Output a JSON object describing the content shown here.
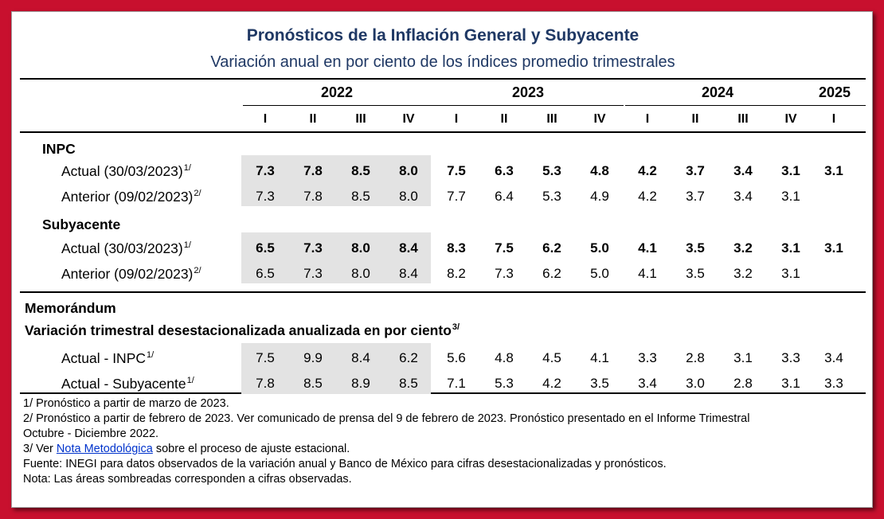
{
  "title": "Pronósticos de la Inflación General y Subyacente",
  "subtitle": "Variación anual en por ciento de los índices promedio trimestrales",
  "years": [
    "2022",
    "2023",
    "2024",
    "2025"
  ],
  "quarters": [
    "I",
    "II",
    "III",
    "IV",
    "I",
    "II",
    "III",
    "IV",
    "I",
    "II",
    "III",
    "IV",
    "I"
  ],
  "sections": {
    "inpc": {
      "label": "INPC",
      "rows": [
        {
          "label": "Actual (30/03/2023)",
          "sup": "1/",
          "bold": true,
          "values": [
            "7.3",
            "7.8",
            "8.5",
            "8.0",
            "7.5",
            "6.3",
            "5.3",
            "4.8",
            "4.2",
            "3.7",
            "3.4",
            "3.1",
            "3.1"
          ]
        },
        {
          "label": "Anterior (09/02/2023)",
          "sup": "2/",
          "bold": false,
          "values": [
            "7.3",
            "7.8",
            "8.5",
            "8.0",
            "7.7",
            "6.4",
            "5.3",
            "4.9",
            "4.2",
            "3.7",
            "3.4",
            "3.1",
            ""
          ]
        }
      ]
    },
    "subyacente": {
      "label": "Subyacente",
      "rows": [
        {
          "label": "Actual (30/03/2023)",
          "sup": "1/",
          "bold": true,
          "values": [
            "6.5",
            "7.3",
            "8.0",
            "8.4",
            "8.3",
            "7.5",
            "6.2",
            "5.0",
            "4.1",
            "3.5",
            "3.2",
            "3.1",
            "3.1"
          ]
        },
        {
          "label": "Anterior (09/02/2023)",
          "sup": "2/",
          "bold": false,
          "values": [
            "6.5",
            "7.3",
            "8.0",
            "8.4",
            "8.2",
            "7.3",
            "6.2",
            "5.0",
            "4.1",
            "3.5",
            "3.2",
            "3.1",
            ""
          ]
        }
      ]
    },
    "memo": {
      "label": "Memorándum",
      "sublabel": "Variación trimestral desestacionalizada anualizada en por ciento",
      "sublabel_sup": "3/",
      "rows": [
        {
          "label": "Actual - INPC",
          "sup": "1/",
          "bold": false,
          "values": [
            "7.5",
            "9.9",
            "8.4",
            "6.2",
            "5.6",
            "4.8",
            "4.5",
            "4.1",
            "3.3",
            "2.8",
            "3.1",
            "3.3",
            "3.4"
          ]
        },
        {
          "label": "Actual - Subyacente",
          "sup": "1/",
          "bold": false,
          "values": [
            "7.8",
            "8.5",
            "8.9",
            "8.5",
            "7.1",
            "5.3",
            "4.2",
            "3.5",
            "3.4",
            "3.0",
            "2.8",
            "3.1",
            "3.3"
          ]
        }
      ]
    }
  },
  "notes": {
    "n1": "1/ Pronóstico a partir de marzo de 2023.",
    "n2a": "2/ Pronóstico a partir de febrero de 2023. Ver comunicado de prensa del 9 de febrero de 2023. Pronóstico presentado en el Informe Trimestral",
    "n2b": "Octubre - Diciembre 2022.",
    "n3_pre": "3/ Ver ",
    "n3_link": "Nota Metodológica",
    "n3_post": " sobre el proceso de ajuste estacional.",
    "fuente": "Fuente: INEGI para datos observados de la variación anual y Banco de México para cifras desestacionalizadas y pronósticos.",
    "nota": "Nota: Las áreas sombreadas corresponden a cifras observadas."
  },
  "colors": {
    "frame": "#c8102e",
    "title": "#1f3864",
    "shade": "#e3e3e3",
    "link": "#0033cc"
  }
}
